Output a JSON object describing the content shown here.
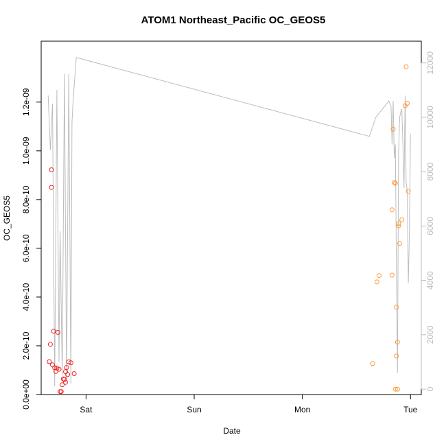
{
  "chart_data": {
    "type": "scatter",
    "title": "ATOM1 Northeast_Pacific OC_GEOS5",
    "xlabel": "Date",
    "ylabel": "OC_GEOS5",
    "x_ticks": [
      {
        "day": 1.0,
        "label": "Sat"
      },
      {
        "day": 2.0,
        "label": "Sun"
      },
      {
        "day": 3.0,
        "label": "Mon"
      },
      {
        "day": 4.0,
        "label": "Tue"
      }
    ],
    "xlim": [
      0.585,
      4.1
    ],
    "ylim": [
      0,
      1.45e-09
    ],
    "y_ticks": [
      {
        "value": 0,
        "label": "0.0e+00"
      },
      {
        "value": 2e-10,
        "label": "2.0e-10"
      },
      {
        "value": 4e-10,
        "label": "4.0e-10"
      },
      {
        "value": 6e-10,
        "label": "6.0e-10"
      },
      {
        "value": 8e-10,
        "label": "8.0e-10"
      },
      {
        "value": 1e-09,
        "label": "1.0e-09"
      },
      {
        "value": 1.2e-09,
        "label": "1.2e-09"
      }
    ],
    "y2lim": [
      -200,
      12800
    ],
    "y2_ticks": [
      {
        "value": 0,
        "label": "0"
      },
      {
        "value": 2000,
        "label": "2000"
      },
      {
        "value": 4000,
        "label": "4000"
      },
      {
        "value": 6000,
        "label": "6000"
      },
      {
        "value": 8000,
        "label": "8000"
      },
      {
        "value": 10000,
        "label": "10000"
      },
      {
        "value": 12000,
        "label": "12000"
      }
    ],
    "colors": {
      "series1": "#ee2222",
      "series2": "#ff9933",
      "line": "#bdbdbd"
    },
    "series": [
      {
        "points": [
          [
            0.66,
            1.35e-10
          ],
          [
            0.67,
            2.06e-10
          ],
          [
            0.68,
            9.22e-10
          ],
          [
            0.68,
            8.5e-10
          ],
          [
            0.69,
            1.22e-10
          ],
          [
            0.7,
            2.6e-10
          ],
          [
            0.71,
            1.1e-10
          ],
          [
            0.72,
            9.5e-11
          ],
          [
            0.73,
            1.08e-10
          ],
          [
            0.74,
            2.55e-10
          ],
          [
            0.75,
            1.04e-10
          ],
          [
            0.76,
            1.2e-11
          ],
          [
            0.77,
            1.2e-11
          ],
          [
            0.78,
            4e-11
          ],
          [
            0.79,
            6.4e-11
          ],
          [
            0.8,
            6.2e-11
          ],
          [
            0.81,
            5e-11
          ],
          [
            0.81,
            9.4e-11
          ],
          [
            0.82,
            1.11e-10
          ],
          [
            0.83,
            8.2e-11
          ],
          [
            0.84,
            1.34e-10
          ],
          [
            0.86,
            1.3e-10
          ],
          [
            0.89,
            8.6e-11
          ]
        ]
      },
      {
        "points": [
          [
            3.65,
            1.27e-10
          ],
          [
            3.69,
            4.62e-10
          ],
          [
            3.71,
            4.88e-10
          ],
          [
            3.83,
            4.9e-10
          ],
          [
            3.83,
            7.58e-10
          ],
          [
            3.84,
            1.089e-09
          ],
          [
            3.85,
            8.7e-10
          ],
          [
            3.86,
            8.67e-10
          ],
          [
            3.86,
            2.2e-11
          ],
          [
            3.87,
            1.58e-10
          ],
          [
            3.87,
            3.58e-10
          ],
          [
            3.88,
            2.15e-10
          ],
          [
            3.88,
            2.2e-11
          ],
          [
            3.89,
            6.92e-10
          ],
          [
            3.89,
            7.02e-10
          ],
          [
            3.9,
            6.2e-10
          ],
          [
            3.92,
            7.17e-10
          ],
          [
            3.95,
            1.185e-09
          ],
          [
            3.96,
            1.345e-09
          ],
          [
            3.97,
            1.195e-09
          ],
          [
            3.98,
            8.34e-10
          ]
        ]
      }
    ],
    "line_series": {
      "points": [
        [
          0.65,
          10800
        ],
        [
          0.67,
          8800
        ],
        [
          0.69,
          10500
        ],
        [
          0.71,
          100
        ],
        [
          0.73,
          11000
        ],
        [
          0.75,
          1000
        ],
        [
          0.76,
          5800
        ],
        [
          0.78,
          500
        ],
        [
          0.8,
          11600
        ],
        [
          0.82,
          300
        ],
        [
          0.84,
          11600
        ],
        [
          0.86,
          200
        ],
        [
          0.87,
          9800
        ],
        [
          0.88,
          10600
        ],
        [
          0.91,
          12200
        ],
        [
          3.62,
          9300
        ],
        [
          3.68,
          10000
        ],
        [
          3.8,
          10600
        ],
        [
          3.82,
          10400
        ],
        [
          3.83,
          9000
        ],
        [
          3.84,
          10600
        ],
        [
          3.85,
          8500
        ],
        [
          3.86,
          9000
        ],
        [
          3.87,
          4600
        ],
        [
          3.88,
          600
        ],
        [
          3.89,
          8700
        ],
        [
          3.9,
          10000
        ],
        [
          3.91,
          10200
        ],
        [
          3.92,
          10300
        ],
        [
          3.93,
          9000
        ],
        [
          3.94,
          7400
        ],
        [
          3.95,
          10800
        ],
        [
          3.96,
          7600
        ],
        [
          3.97,
          7300
        ],
        [
          3.98,
          3900
        ],
        [
          3.99,
          5800
        ],
        [
          4.0,
          9400
        ]
      ]
    }
  }
}
